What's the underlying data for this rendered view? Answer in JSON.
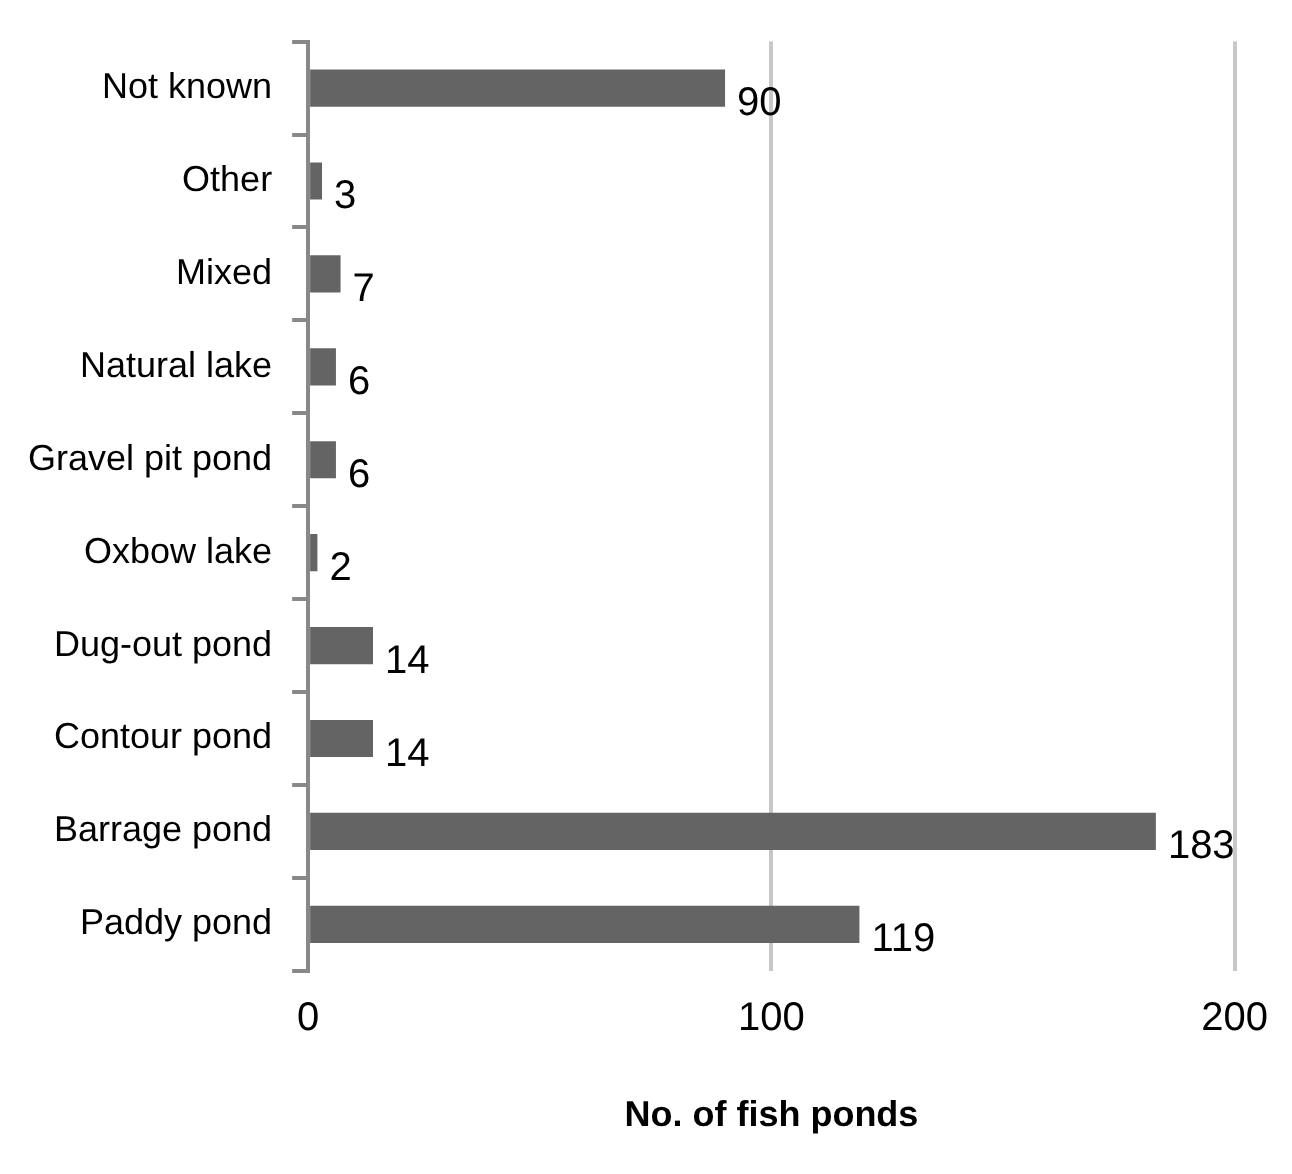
{
  "chart_data": {
    "type": "bar",
    "orientation": "horizontal",
    "xlabel": "No. of fish ponds",
    "categories": [
      "Not known",
      "Other",
      "Mixed",
      "Natural lake",
      "Gravel pit pond",
      "Oxbow lake",
      "Dug-out pond",
      "Contour pond",
      "Barrage pond",
      "Paddy pond"
    ],
    "values": [
      90,
      3,
      7,
      6,
      6,
      2,
      14,
      14,
      183,
      119
    ],
    "color": "#646464",
    "xlim": [
      0,
      200
    ],
    "xticks": [
      0,
      100,
      200
    ],
    "grid": "x",
    "data_labels": true
  }
}
